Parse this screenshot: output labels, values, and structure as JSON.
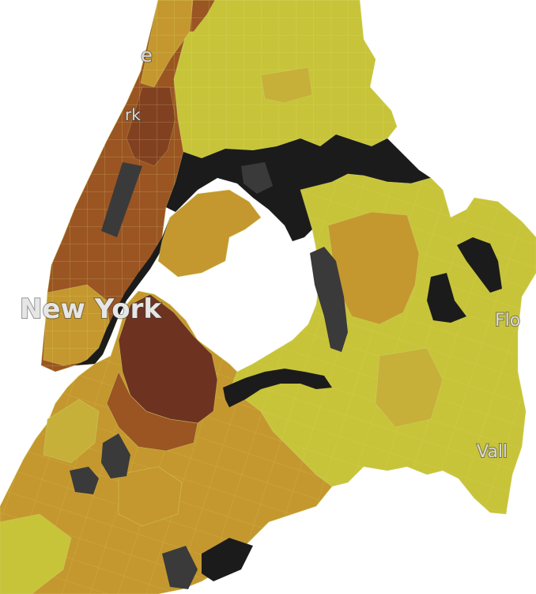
{
  "map": {
    "labels": {
      "city": "New York",
      "fragment_top_left": "e",
      "fragment_upper": "rk",
      "fragment_right": "Flo",
      "fragment_lower_right": "Vall"
    },
    "colors": {
      "water": "#1b1b1b",
      "park": "#3a3a3a",
      "low": "#c7c43a",
      "low_mid": "#c6b03a",
      "mid": "#c4982f",
      "mid_high": "#b27a2a",
      "high": "#9a5523",
      "highest": "#6e3220",
      "tract_line": "#d6d36a"
    },
    "legend": "choropleth of census tracts, darker brown = higher value, yellow = lower value"
  }
}
